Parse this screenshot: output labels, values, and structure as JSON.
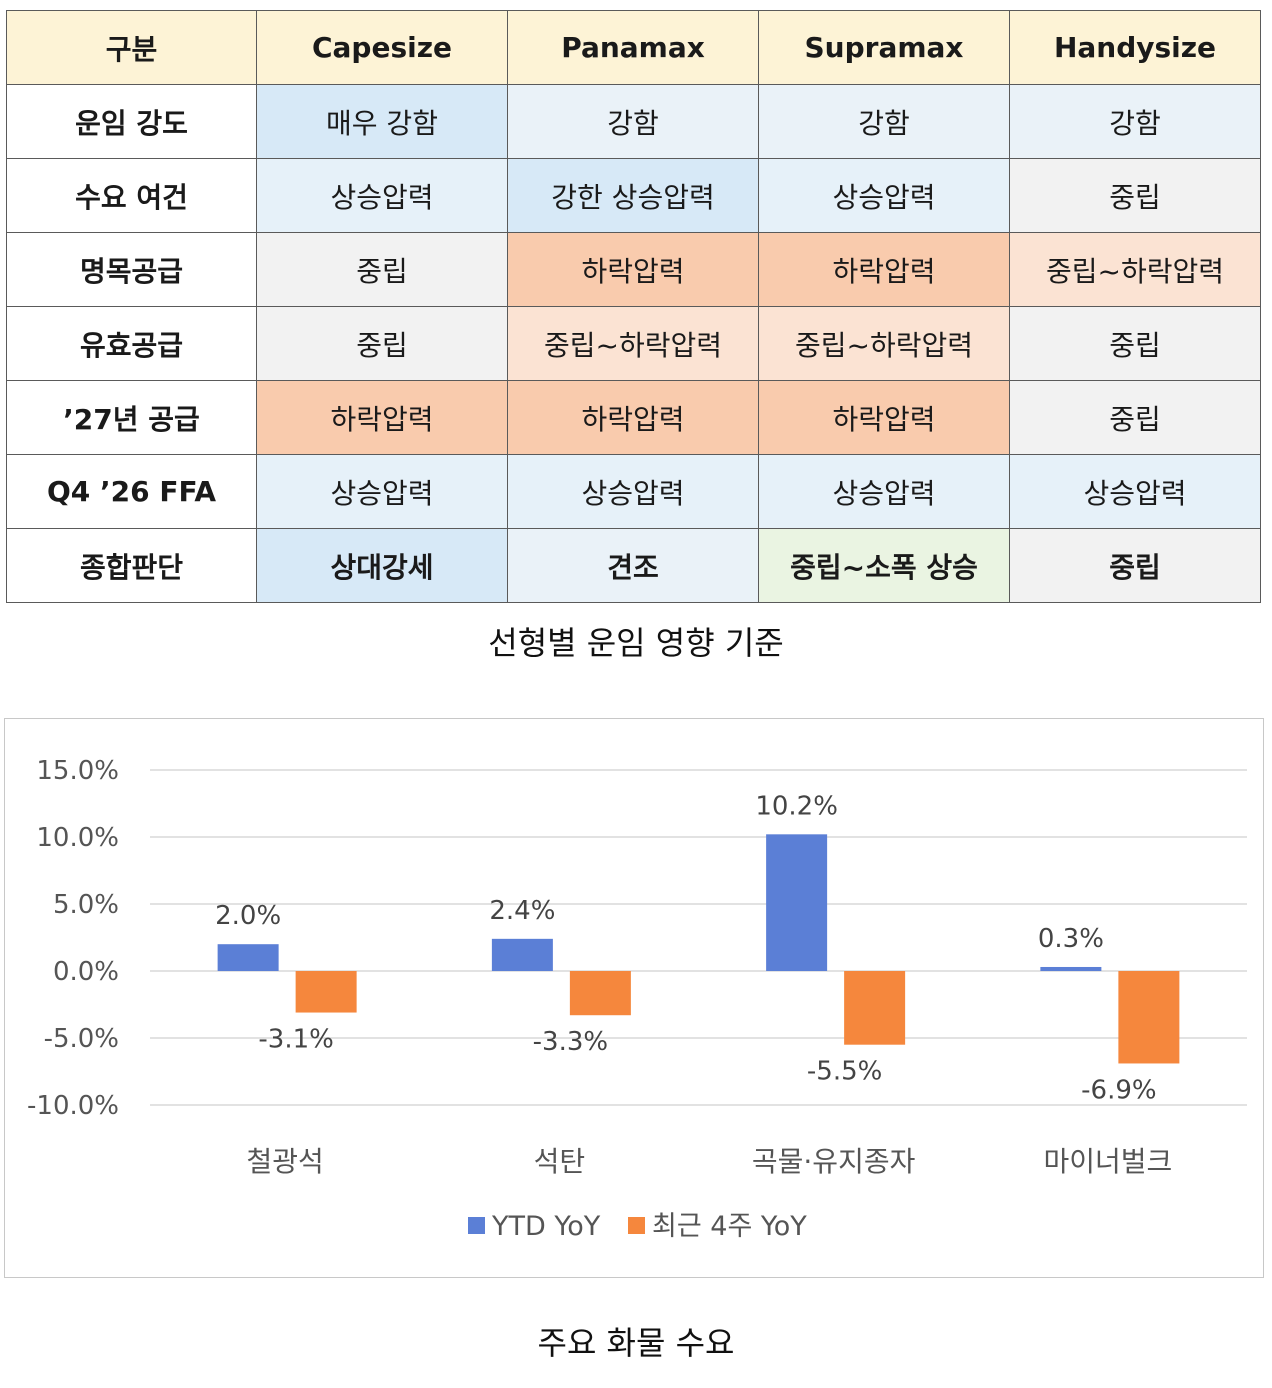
{
  "table": {
    "header": [
      "구분",
      "Capesize",
      "Panamax",
      "Supramax",
      "Handysize"
    ],
    "rows": [
      {
        "label": "운임 강도",
        "cells": [
          "매우 강함",
          "강함",
          "강함",
          "강함"
        ]
      },
      {
        "label": "수요 여건",
        "cells": [
          "상승압력",
          "강한 상승압력",
          "상승압력",
          "중립"
        ]
      },
      {
        "label": "명목공급",
        "cells": [
          "중립",
          "하락압력",
          "하락압력",
          "중립~하락압력"
        ]
      },
      {
        "label": "유효공급",
        "cells": [
          "중립",
          "중립~하락압력",
          "중립~하락압력",
          "중립"
        ]
      },
      {
        "label": "’27년 공급",
        "cells": [
          "하락압력",
          "하락압력",
          "하락압력",
          "중립"
        ]
      },
      {
        "label": "Q4 ’26 FFA",
        "cells": [
          "상승압력",
          "상승압력",
          "상승압력",
          "상승압력"
        ]
      },
      {
        "label": "종합판단",
        "cells": [
          "상대강세",
          "견조",
          "중립~소폭 상승",
          "중립"
        ]
      }
    ],
    "caption": "선형별 운임 영향 기준"
  },
  "chart_caption": "주요 화물 수요",
  "chart_data": {
    "type": "bar",
    "categories": [
      "철광석",
      "석탄",
      "곡물·유지종자",
      "마이너벌크"
    ],
    "series": [
      {
        "name": "YTD YoY",
        "values": [
          2.0,
          2.4,
          10.2,
          0.3
        ],
        "color": "#5b7fd6"
      },
      {
        "name": "최근 4주 YoY",
        "values": [
          -3.1,
          -3.3,
          -5.5,
          -6.9
        ],
        "color": "#f5873d"
      }
    ],
    "value_labels": [
      [
        "2.0%",
        "2.4%",
        "10.2%",
        "0.3%"
      ],
      [
        "-3.1%",
        "-3.3%",
        "-5.5%",
        "-6.9%"
      ]
    ],
    "ylim": [
      -10,
      15
    ],
    "yticks": [
      15,
      10,
      5,
      0,
      -5,
      -10
    ],
    "ytick_labels": [
      "15.0%",
      "10.0%",
      "5.0%",
      "0.0%",
      "-5.0%",
      "-10.0%"
    ],
    "grid": true,
    "legend": "bottom-center",
    "title": "",
    "xlabel": "",
    "ylabel": ""
  }
}
